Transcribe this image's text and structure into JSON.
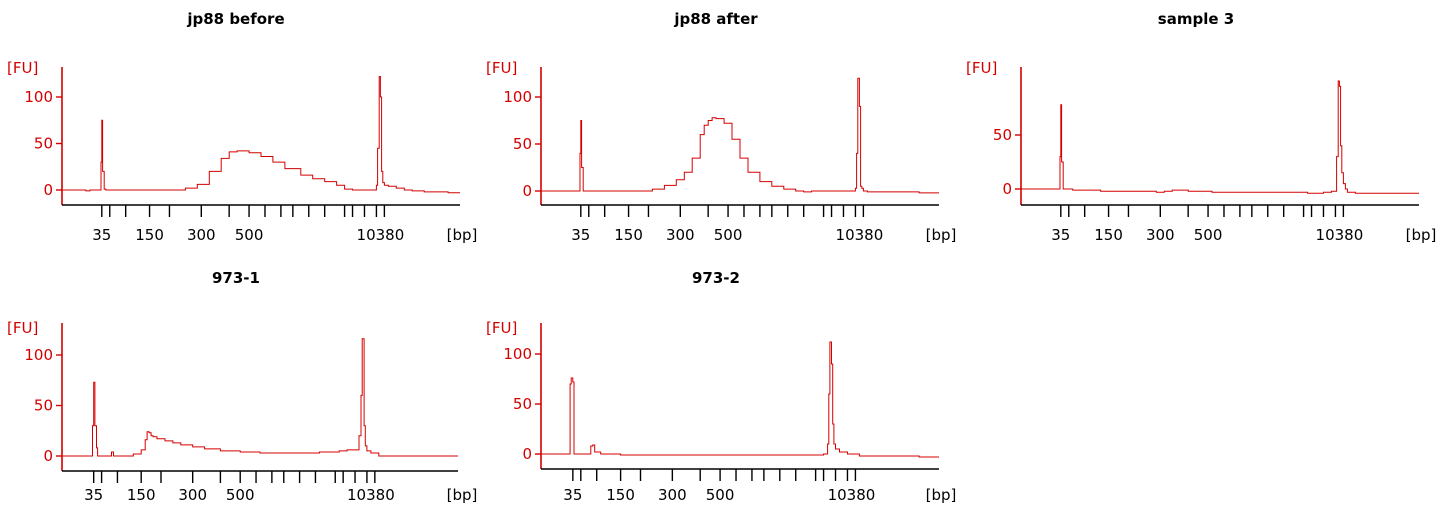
{
  "chart_data": [
    {
      "type": "line",
      "title": "jp88 before",
      "ylabel": "[FU]",
      "xlabel": "[bp]",
      "yticks": [
        0,
        50,
        100
      ],
      "ylim": [
        -5,
        130
      ],
      "xlim": [
        0,
        100
      ],
      "tick_positions": [
        10,
        12,
        16,
        22,
        27,
        35,
        42,
        47,
        51,
        55,
        58,
        62,
        66,
        71,
        73,
        76,
        79,
        81
      ],
      "tick_labels": [
        {
          "pos": 10,
          "text": "35"
        },
        {
          "pos": 22,
          "text": "150"
        },
        {
          "pos": 35,
          "text": "300"
        },
        {
          "pos": 47,
          "text": "500"
        },
        {
          "pos": 80,
          "text": "10380"
        }
      ],
      "x": [
        0,
        5,
        6,
        7,
        9.5,
        9.8,
        10,
        10.2,
        10.6,
        11,
        12,
        20,
        28,
        31,
        34,
        37,
        40,
        42,
        44,
        47,
        50,
        53,
        56,
        60,
        63,
        66,
        69,
        71,
        73,
        75,
        76,
        76.3,
        77,
        78,
        79,
        79.3,
        79.7,
        80,
        80.3,
        80.6,
        81,
        82,
        84,
        86,
        88,
        91,
        94,
        97,
        100
      ],
      "y": [
        0,
        0,
        -1,
        0,
        0,
        30,
        75,
        20,
        1,
        0,
        0,
        0,
        0,
        2,
        6,
        20,
        34,
        41,
        42,
        40,
        36,
        30,
        23,
        16,
        12,
        9,
        5,
        1,
        0,
        0,
        0,
        0,
        0,
        0,
        5,
        45,
        122,
        100,
        20,
        8,
        5,
        4,
        2,
        0,
        -1,
        -2,
        -2,
        -3,
        -3
      ]
    },
    {
      "type": "line",
      "title": "jp88 after",
      "ylabel": "[FU]",
      "xlabel": "[bp]",
      "yticks": [
        0,
        50,
        100
      ],
      "ylim": [
        -5,
        130
      ],
      "xlim": [
        0,
        100
      ],
      "tick_positions": [
        10,
        12,
        16,
        22,
        27,
        35,
        42,
        47,
        51,
        55,
        58,
        62,
        66,
        71,
        73,
        76,
        79,
        81
      ],
      "tick_labels": [
        {
          "pos": 10,
          "text": "35"
        },
        {
          "pos": 22,
          "text": "150"
        },
        {
          "pos": 35,
          "text": "300"
        },
        {
          "pos": 47,
          "text": "500"
        },
        {
          "pos": 80,
          "text": "10380"
        }
      ],
      "x": [
        0,
        8,
        9.5,
        9.8,
        10,
        10.2,
        10.6,
        11,
        13,
        18,
        21,
        25,
        28,
        31,
        34,
        36,
        38,
        40,
        41,
        42,
        43,
        44,
        46,
        48,
        50,
        52,
        55,
        58,
        61,
        64,
        66,
        68,
        70,
        72,
        74,
        76,
        77,
        78,
        79,
        79.3,
        79.6,
        80,
        80.3,
        80.6,
        81,
        82,
        85,
        90,
        95,
        100
      ],
      "y": [
        0,
        0,
        0,
        40,
        75,
        25,
        0,
        0,
        0,
        0,
        0,
        0,
        2,
        6,
        12,
        20,
        35,
        60,
        70,
        75,
        78,
        77,
        72,
        55,
        35,
        20,
        10,
        5,
        2,
        0,
        -1,
        0,
        0,
        0,
        0,
        0,
        0,
        0,
        3,
        40,
        120,
        90,
        5,
        3,
        0,
        -1,
        -1,
        -1,
        -2,
        -2
      ]
    },
    {
      "type": "line",
      "title": "sample 3",
      "ylabel": "[FU]",
      "xlabel": "[bp]",
      "yticks": [
        0,
        50
      ],
      "ylim": [
        -5,
        115
      ],
      "xlim": [
        0,
        100
      ],
      "tick_positions": [
        10,
        12,
        16,
        22,
        27,
        35,
        42,
        47,
        51,
        55,
        58,
        62,
        66,
        71,
        73,
        76,
        79,
        81
      ],
      "tick_labels": [
        {
          "pos": 10,
          "text": "35"
        },
        {
          "pos": 22,
          "text": "150"
        },
        {
          "pos": 35,
          "text": "300"
        },
        {
          "pos": 47,
          "text": "500"
        },
        {
          "pos": 80,
          "text": "10380"
        }
      ],
      "x": [
        0,
        8,
        9.5,
        9.8,
        10,
        10.2,
        10.6,
        11,
        13,
        16,
        20,
        25,
        30,
        34,
        36,
        38,
        42,
        48,
        54,
        60,
        66,
        72,
        76,
        78,
        79,
        79.3,
        79.7,
        80,
        80.3,
        80.6,
        81,
        81.5,
        82,
        84,
        88,
        92,
        96,
        100
      ],
      "y": [
        0,
        0,
        0,
        30,
        78,
        25,
        0,
        0,
        -1,
        -1,
        -2,
        -2,
        -2,
        -3,
        -2,
        -1,
        -2,
        -3,
        -3,
        -3,
        -3,
        -4,
        -3,
        -2,
        -2,
        30,
        100,
        95,
        40,
        15,
        5,
        0,
        -3,
        -4,
        -4,
        -4,
        -4,
        -4
      ]
    },
    {
      "type": "line",
      "title": "973-1",
      "ylabel": "[FU]",
      "xlabel": "[bp]",
      "yticks": [
        0,
        50,
        100
      ],
      "ylim": [
        -5,
        130
      ],
      "xlim": [
        0,
        100
      ],
      "tick_positions": [
        8,
        10,
        14,
        20,
        25,
        33,
        40,
        45,
        49,
        53,
        56,
        60,
        64,
        69,
        71,
        74,
        77,
        79
      ],
      "tick_labels": [
        {
          "pos": 8,
          "text": "35"
        },
        {
          "pos": 20,
          "text": "150"
        },
        {
          "pos": 33,
          "text": "300"
        },
        {
          "pos": 45,
          "text": "500"
        },
        {
          "pos": 78,
          "text": "10380"
        }
      ],
      "x": [
        0,
        7,
        7.4,
        7.7,
        8,
        8.3,
        8.7,
        9,
        10,
        12,
        12.5,
        13,
        13.5,
        15,
        18,
        20,
        21,
        21.5,
        22,
        22.5,
        23,
        24,
        26,
        28,
        30,
        33,
        36,
        40,
        45,
        50,
        55,
        60,
        65,
        70,
        72,
        74,
        75,
        75.5,
        75.8,
        76,
        76.3,
        76.6,
        77,
        78,
        80,
        85,
        90,
        95,
        100
      ],
      "y": [
        0,
        0,
        0,
        30,
        73,
        30,
        8,
        0,
        0,
        0,
        4,
        0,
        0,
        0,
        2,
        6,
        16,
        24,
        23,
        20,
        19,
        17,
        15,
        13,
        11,
        9,
        7,
        5,
        4,
        3,
        3,
        3,
        4,
        5,
        6,
        6,
        20,
        60,
        116,
        116,
        30,
        10,
        5,
        3,
        0,
        0,
        0,
        0,
        0
      ]
    },
    {
      "type": "line",
      "title": "973-2",
      "ylabel": "[FU]",
      "xlabel": "[bp]",
      "yticks": [
        0,
        50,
        100
      ],
      "ylim": [
        -5,
        130
      ],
      "xlim": [
        0,
        100
      ],
      "tick_positions": [
        8,
        10,
        14,
        20,
        25,
        33,
        40,
        45,
        49,
        53,
        56,
        60,
        64,
        69,
        71,
        74,
        77,
        79
      ],
      "tick_labels": [
        {
          "pos": 8,
          "text": "35"
        },
        {
          "pos": 20,
          "text": "150"
        },
        {
          "pos": 33,
          "text": "300"
        },
        {
          "pos": 45,
          "text": "500"
        },
        {
          "pos": 78,
          "text": "10380"
        }
      ],
      "x": [
        0,
        6.5,
        7,
        7.3,
        7.6,
        8,
        8.3,
        9,
        12,
        12.5,
        13,
        13.5,
        15,
        20,
        30,
        40,
        50,
        60,
        68,
        71,
        72,
        72.3,
        72.6,
        73,
        73.3,
        73.6,
        74,
        75,
        77,
        80,
        85,
        90,
        95,
        100
      ],
      "y": [
        0,
        0,
        0,
        70,
        76,
        72,
        0,
        0,
        0,
        8,
        9,
        2,
        0,
        -1,
        -1,
        -1,
        -1,
        -1,
        -1,
        0,
        10,
        60,
        112,
        90,
        30,
        10,
        5,
        2,
        0,
        -2,
        -2,
        -2,
        -3,
        -3
      ]
    }
  ]
}
